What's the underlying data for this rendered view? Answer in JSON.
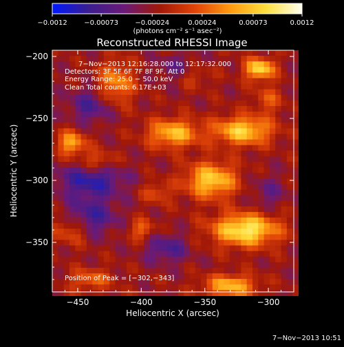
{
  "chart_data": {
    "type": "heatmap",
    "title": "Reconstructed RHESSI Image",
    "xlabel": "Heliocentric X (arcsec)",
    "ylabel": "Heliocentric Y (arcsec)",
    "xlim": [
      -470,
      -280
    ],
    "ylim": [
      -390,
      -195
    ],
    "x_ticks": [
      -450,
      -400,
      -350,
      -300
    ],
    "y_ticks": [
      -200,
      -250,
      -300,
      -350
    ],
    "x_tick_labels": [
      "−450",
      "−400",
      "−350",
      "−300"
    ],
    "y_tick_labels": [
      "−200",
      "−250",
      "−300",
      "−350"
    ],
    "colorbar": {
      "range": [
        -0.0012,
        0.0012
      ],
      "ticks": [
        -0.0012,
        -0.00073,
        -0.00024,
        0.00024,
        0.00073,
        0.0012
      ],
      "tick_labels": [
        "−0.0012",
        "−0.00073",
        "−0.00024",
        "0.00024",
        "0.00073",
        "0.0012"
      ],
      "unit_label": "(photons cm⁻² s⁻¹ asec⁻²)",
      "colors": [
        "#0018ff",
        "#3a1e90",
        "#6a1a78",
        "#a01808",
        "#e04408",
        "#ff9a10",
        "#ffe040",
        "#fffff0"
      ]
    },
    "annotations": [
      "7−Nov−2013 12:16:28.000  to 12:17:32.000",
      "Detectors: 3F 5F 6F 7F 8F 9F, Att 0",
      "Energy Range: 25.0 − 50.0 keV",
      "Clean     Total counts: 6.17E+03"
    ],
    "peak_label": "Position of Peak = [−302,−343]",
    "peak_position": [
      -302,
      -343
    ],
    "blobs": [
      {
        "x": -307,
        "y": -210,
        "amp": 0.0011,
        "sx": 8,
        "sy": 6
      },
      {
        "x": -320,
        "y": -260,
        "amp": 0.001,
        "sx": 16,
        "sy": 8
      },
      {
        "x": -345,
        "y": -300,
        "amp": 0.001,
        "sx": 14,
        "sy": 10
      },
      {
        "x": -318,
        "y": -340,
        "amp": 0.0012,
        "sx": 18,
        "sy": 9
      },
      {
        "x": -375,
        "y": -262,
        "amp": 0.0009,
        "sx": 14,
        "sy": 8
      },
      {
        "x": -420,
        "y": -222,
        "amp": 0.0007,
        "sx": 10,
        "sy": 12
      },
      {
        "x": -455,
        "y": -270,
        "amp": 0.0008,
        "sx": 8,
        "sy": 7
      },
      {
        "x": -435,
        "y": -285,
        "amp": 0.0005,
        "sx": 10,
        "sy": 6
      },
      {
        "x": -330,
        "y": -385,
        "amp": 0.0009,
        "sx": 14,
        "sy": 6
      },
      {
        "x": -400,
        "y": -340,
        "amp": 0.0005,
        "sx": 7,
        "sy": 6
      },
      {
        "x": -388,
        "y": -310,
        "amp": 0.0004,
        "sx": 8,
        "sy": 6
      },
      {
        "x": -455,
        "y": -340,
        "amp": 0.0005,
        "sx": 10,
        "sy": 8
      },
      {
        "x": -360,
        "y": -215,
        "amp": 0.0004,
        "sx": 10,
        "sy": 7
      },
      {
        "x": -300,
        "y": -235,
        "amp": 0.0004,
        "sx": 8,
        "sy": 8
      },
      {
        "x": -440,
        "y": -380,
        "amp": 0.0005,
        "sx": 12,
        "sy": 6
      },
      {
        "x": -440,
        "y": -300,
        "amp": -0.0007,
        "sx": 18,
        "sy": 10
      },
      {
        "x": -440,
        "y": -330,
        "amp": -0.0006,
        "sx": 14,
        "sy": 10
      },
      {
        "x": -440,
        "y": -240,
        "amp": -0.0005,
        "sx": 12,
        "sy": 10
      },
      {
        "x": -380,
        "y": -355,
        "amp": -0.0005,
        "sx": 12,
        "sy": 8
      },
      {
        "x": -300,
        "y": -310,
        "amp": -0.0003,
        "sx": 10,
        "sy": 10
      },
      {
        "x": -370,
        "y": -210,
        "amp": -0.0004,
        "sx": 12,
        "sy": 8
      }
    ]
  },
  "footer": {
    "timestamp": "7−Nov−2013 10:51"
  }
}
